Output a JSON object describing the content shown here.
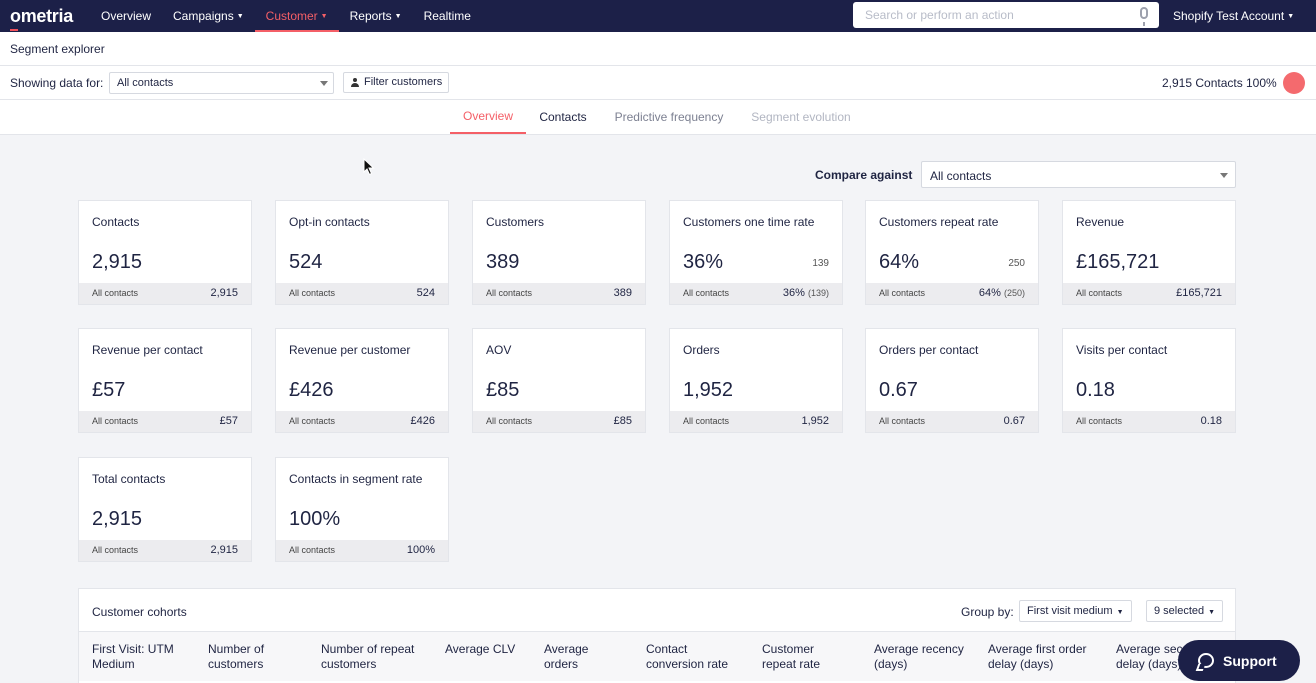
{
  "nav": {
    "logo": "ometria",
    "items": [
      {
        "label": "Overview",
        "caret": false,
        "active": false
      },
      {
        "label": "Campaigns",
        "caret": true,
        "active": false
      },
      {
        "label": "Customer",
        "caret": true,
        "active": true
      },
      {
        "label": "Reports",
        "caret": true,
        "active": false
      },
      {
        "label": "Realtime",
        "caret": false,
        "active": false
      }
    ],
    "search_placeholder": "Search or perform an action",
    "account": "Shopify Test Account"
  },
  "page_title": "Segment explorer",
  "filter": {
    "showing_label": "Showing data for:",
    "segment": "All contacts",
    "filter_button": "Filter customers",
    "contacts_count": "2,915 Contacts",
    "percent": "100%"
  },
  "tabs": [
    {
      "label": "Overview",
      "state": "active"
    },
    {
      "label": "Contacts",
      "state": "normal"
    },
    {
      "label": "Predictive frequency",
      "state": "muted"
    },
    {
      "label": "Segment evolution",
      "state": "disabled"
    }
  ],
  "compare": {
    "label": "Compare against",
    "value": "All contacts"
  },
  "cards": [
    {
      "title": "Contacts",
      "value": "2,915",
      "side": "",
      "foot_label": "All contacts",
      "foot_value": "2,915",
      "foot_paren": ""
    },
    {
      "title": "Opt-in contacts",
      "value": "524",
      "side": "",
      "foot_label": "All contacts",
      "foot_value": "524",
      "foot_paren": ""
    },
    {
      "title": "Customers",
      "value": "389",
      "side": "",
      "foot_label": "All contacts",
      "foot_value": "389",
      "foot_paren": ""
    },
    {
      "title": "Customers one time rate",
      "value": "36%",
      "side": "139",
      "foot_label": "All contacts",
      "foot_value": "36%",
      "foot_paren": "(139)"
    },
    {
      "title": "Customers repeat rate",
      "value": "64%",
      "side": "250",
      "foot_label": "All contacts",
      "foot_value": "64%",
      "foot_paren": "(250)"
    },
    {
      "title": "Revenue",
      "value": "£165,721",
      "side": "",
      "foot_label": "All contacts",
      "foot_value": "£165,721",
      "foot_paren": ""
    },
    {
      "title": "Revenue per contact",
      "value": "£57",
      "side": "",
      "foot_label": "All contacts",
      "foot_value": "£57",
      "foot_paren": ""
    },
    {
      "title": "Revenue per customer",
      "value": "£426",
      "side": "",
      "foot_label": "All contacts",
      "foot_value": "£426",
      "foot_paren": ""
    },
    {
      "title": "AOV",
      "value": "£85",
      "side": "",
      "foot_label": "All contacts",
      "foot_value": "£85",
      "foot_paren": ""
    },
    {
      "title": "Orders",
      "value": "1,952",
      "side": "",
      "foot_label": "All contacts",
      "foot_value": "1,952",
      "foot_paren": ""
    },
    {
      "title": "Orders per contact",
      "value": "0.67",
      "side": "",
      "foot_label": "All contacts",
      "foot_value": "0.67",
      "foot_paren": ""
    },
    {
      "title": "Visits per contact",
      "value": "0.18",
      "side": "",
      "foot_label": "All contacts",
      "foot_value": "0.18",
      "foot_paren": ""
    },
    {
      "title": "Total contacts",
      "value": "2,915",
      "side": "",
      "foot_label": "All contacts",
      "foot_value": "2,915",
      "foot_paren": ""
    },
    {
      "title": "Contacts in segment rate",
      "value": "100%",
      "side": "",
      "foot_label": "All contacts",
      "foot_value": "100%",
      "foot_paren": ""
    }
  ],
  "cohorts": {
    "title": "Customer cohorts",
    "group_by_label": "Group by:",
    "group_by_value": "First visit medium",
    "selected": "9 selected",
    "columns": [
      "First Visit: UTM Medium",
      "Number of customers",
      "Number of repeat customers",
      "Average CLV",
      "Average orders",
      "Contact conversion rate",
      "Customer repeat rate",
      "Average recency (days)",
      "Average first order delay (days)",
      "Average second order delay (days)"
    ]
  },
  "support": "Support",
  "colors": {
    "nav_bg": "#1c2048",
    "accent": "#f45f67",
    "page_bg": "#f3f4f7"
  }
}
